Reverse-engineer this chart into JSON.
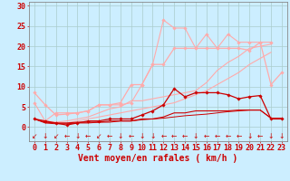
{
  "x": [
    0,
    1,
    2,
    3,
    4,
    5,
    6,
    7,
    8,
    9,
    10,
    11,
    12,
    13,
    14,
    15,
    16,
    17,
    18,
    19,
    20,
    21,
    22,
    23
  ],
  "lines": [
    {
      "y": [
        2.0,
        1.5,
        1.0,
        0.5,
        1.0,
        1.5,
        1.5,
        2.0,
        2.0,
        2.0,
        3.0,
        4.0,
        5.5,
        9.5,
        7.5,
        8.5,
        8.5,
        8.5,
        8.0,
        7.0,
        7.5,
        7.8,
        2.0,
        2.0
      ],
      "color": "#cc0000",
      "marker": "D",
      "markersize": 1.8,
      "linewidth": 0.9,
      "zorder": 5
    },
    {
      "y": [
        2.0,
        1.2,
        1.0,
        1.0,
        1.2,
        1.2,
        1.2,
        1.5,
        1.5,
        1.5,
        2.0,
        2.0,
        2.5,
        3.5,
        3.5,
        4.0,
        4.0,
        4.0,
        4.0,
        4.2,
        4.2,
        4.2,
        2.2,
        2.2
      ],
      "color": "#cc0000",
      "marker": null,
      "markersize": 0,
      "linewidth": 0.8,
      "zorder": 4
    },
    {
      "y": [
        2.0,
        1.0,
        0.8,
        0.8,
        1.0,
        1.0,
        1.2,
        1.2,
        1.5,
        1.5,
        1.8,
        2.0,
        2.2,
        2.5,
        2.8,
        3.0,
        3.2,
        3.5,
        3.8,
        4.0,
        4.2,
        4.2,
        2.2,
        2.2
      ],
      "color": "#cc0000",
      "marker": null,
      "markersize": 0,
      "linewidth": 0.7,
      "zorder": 3
    },
    {
      "y": [
        8.5,
        5.5,
        3.0,
        3.2,
        3.5,
        4.0,
        5.5,
        5.5,
        6.0,
        10.5,
        10.5,
        15.5,
        15.5,
        19.5,
        19.5,
        19.5,
        19.5,
        19.5,
        19.5,
        19.5,
        19.0,
        21.0,
        10.5,
        13.5
      ],
      "color": "#ffaaaa",
      "marker": "D",
      "markersize": 1.8,
      "linewidth": 0.9,
      "zorder": 2
    },
    {
      "y": [
        6.0,
        1.5,
        3.5,
        3.5,
        3.5,
        4.0,
        5.5,
        5.5,
        5.5,
        6.0,
        10.5,
        15.5,
        26.5,
        24.5,
        24.5,
        19.5,
        23.0,
        19.5,
        23.0,
        21.0,
        21.0,
        21.0,
        21.0,
        null
      ],
      "color": "#ffaaaa",
      "marker": "D",
      "markersize": 1.8,
      "linewidth": 0.8,
      "zorder": 2
    },
    {
      "y": [
        2.0,
        1.5,
        1.2,
        1.5,
        2.0,
        2.5,
        3.5,
        4.5,
        5.0,
        6.5,
        6.5,
        7.0,
        7.5,
        8.0,
        8.5,
        9.0,
        11.0,
        14.0,
        16.0,
        17.5,
        19.5,
        20.0,
        20.5,
        null
      ],
      "color": "#ffaaaa",
      "marker": null,
      "markersize": 0,
      "linewidth": 0.8,
      "zorder": 2
    },
    {
      "y": [
        2.0,
        1.2,
        1.0,
        1.0,
        1.5,
        2.0,
        2.5,
        3.0,
        3.5,
        4.0,
        4.5,
        5.0,
        5.5,
        6.0,
        7.0,
        8.0,
        9.0,
        10.5,
        12.0,
        13.5,
        15.5,
        17.0,
        18.5,
        null
      ],
      "color": "#ffaaaa",
      "marker": null,
      "markersize": 0,
      "linewidth": 0.8,
      "zorder": 2
    }
  ],
  "arrows": "↙↓↙←↓←↙←↓←↓↓←←←↓←←←←↓←↓↓",
  "xlabel": "Vent moyen/en rafales ( km/h )",
  "yticks": [
    0,
    5,
    10,
    15,
    20,
    25,
    30
  ],
  "xlim": [
    -0.5,
    23.5
  ],
  "ylim": [
    -3.5,
    31
  ],
  "background_color": "#cceeff",
  "grid_color": "#aacccc",
  "text_color": "#cc0000",
  "xlabel_fontsize": 7,
  "tick_fontsize": 6,
  "arrow_fontsize": 5.5
}
